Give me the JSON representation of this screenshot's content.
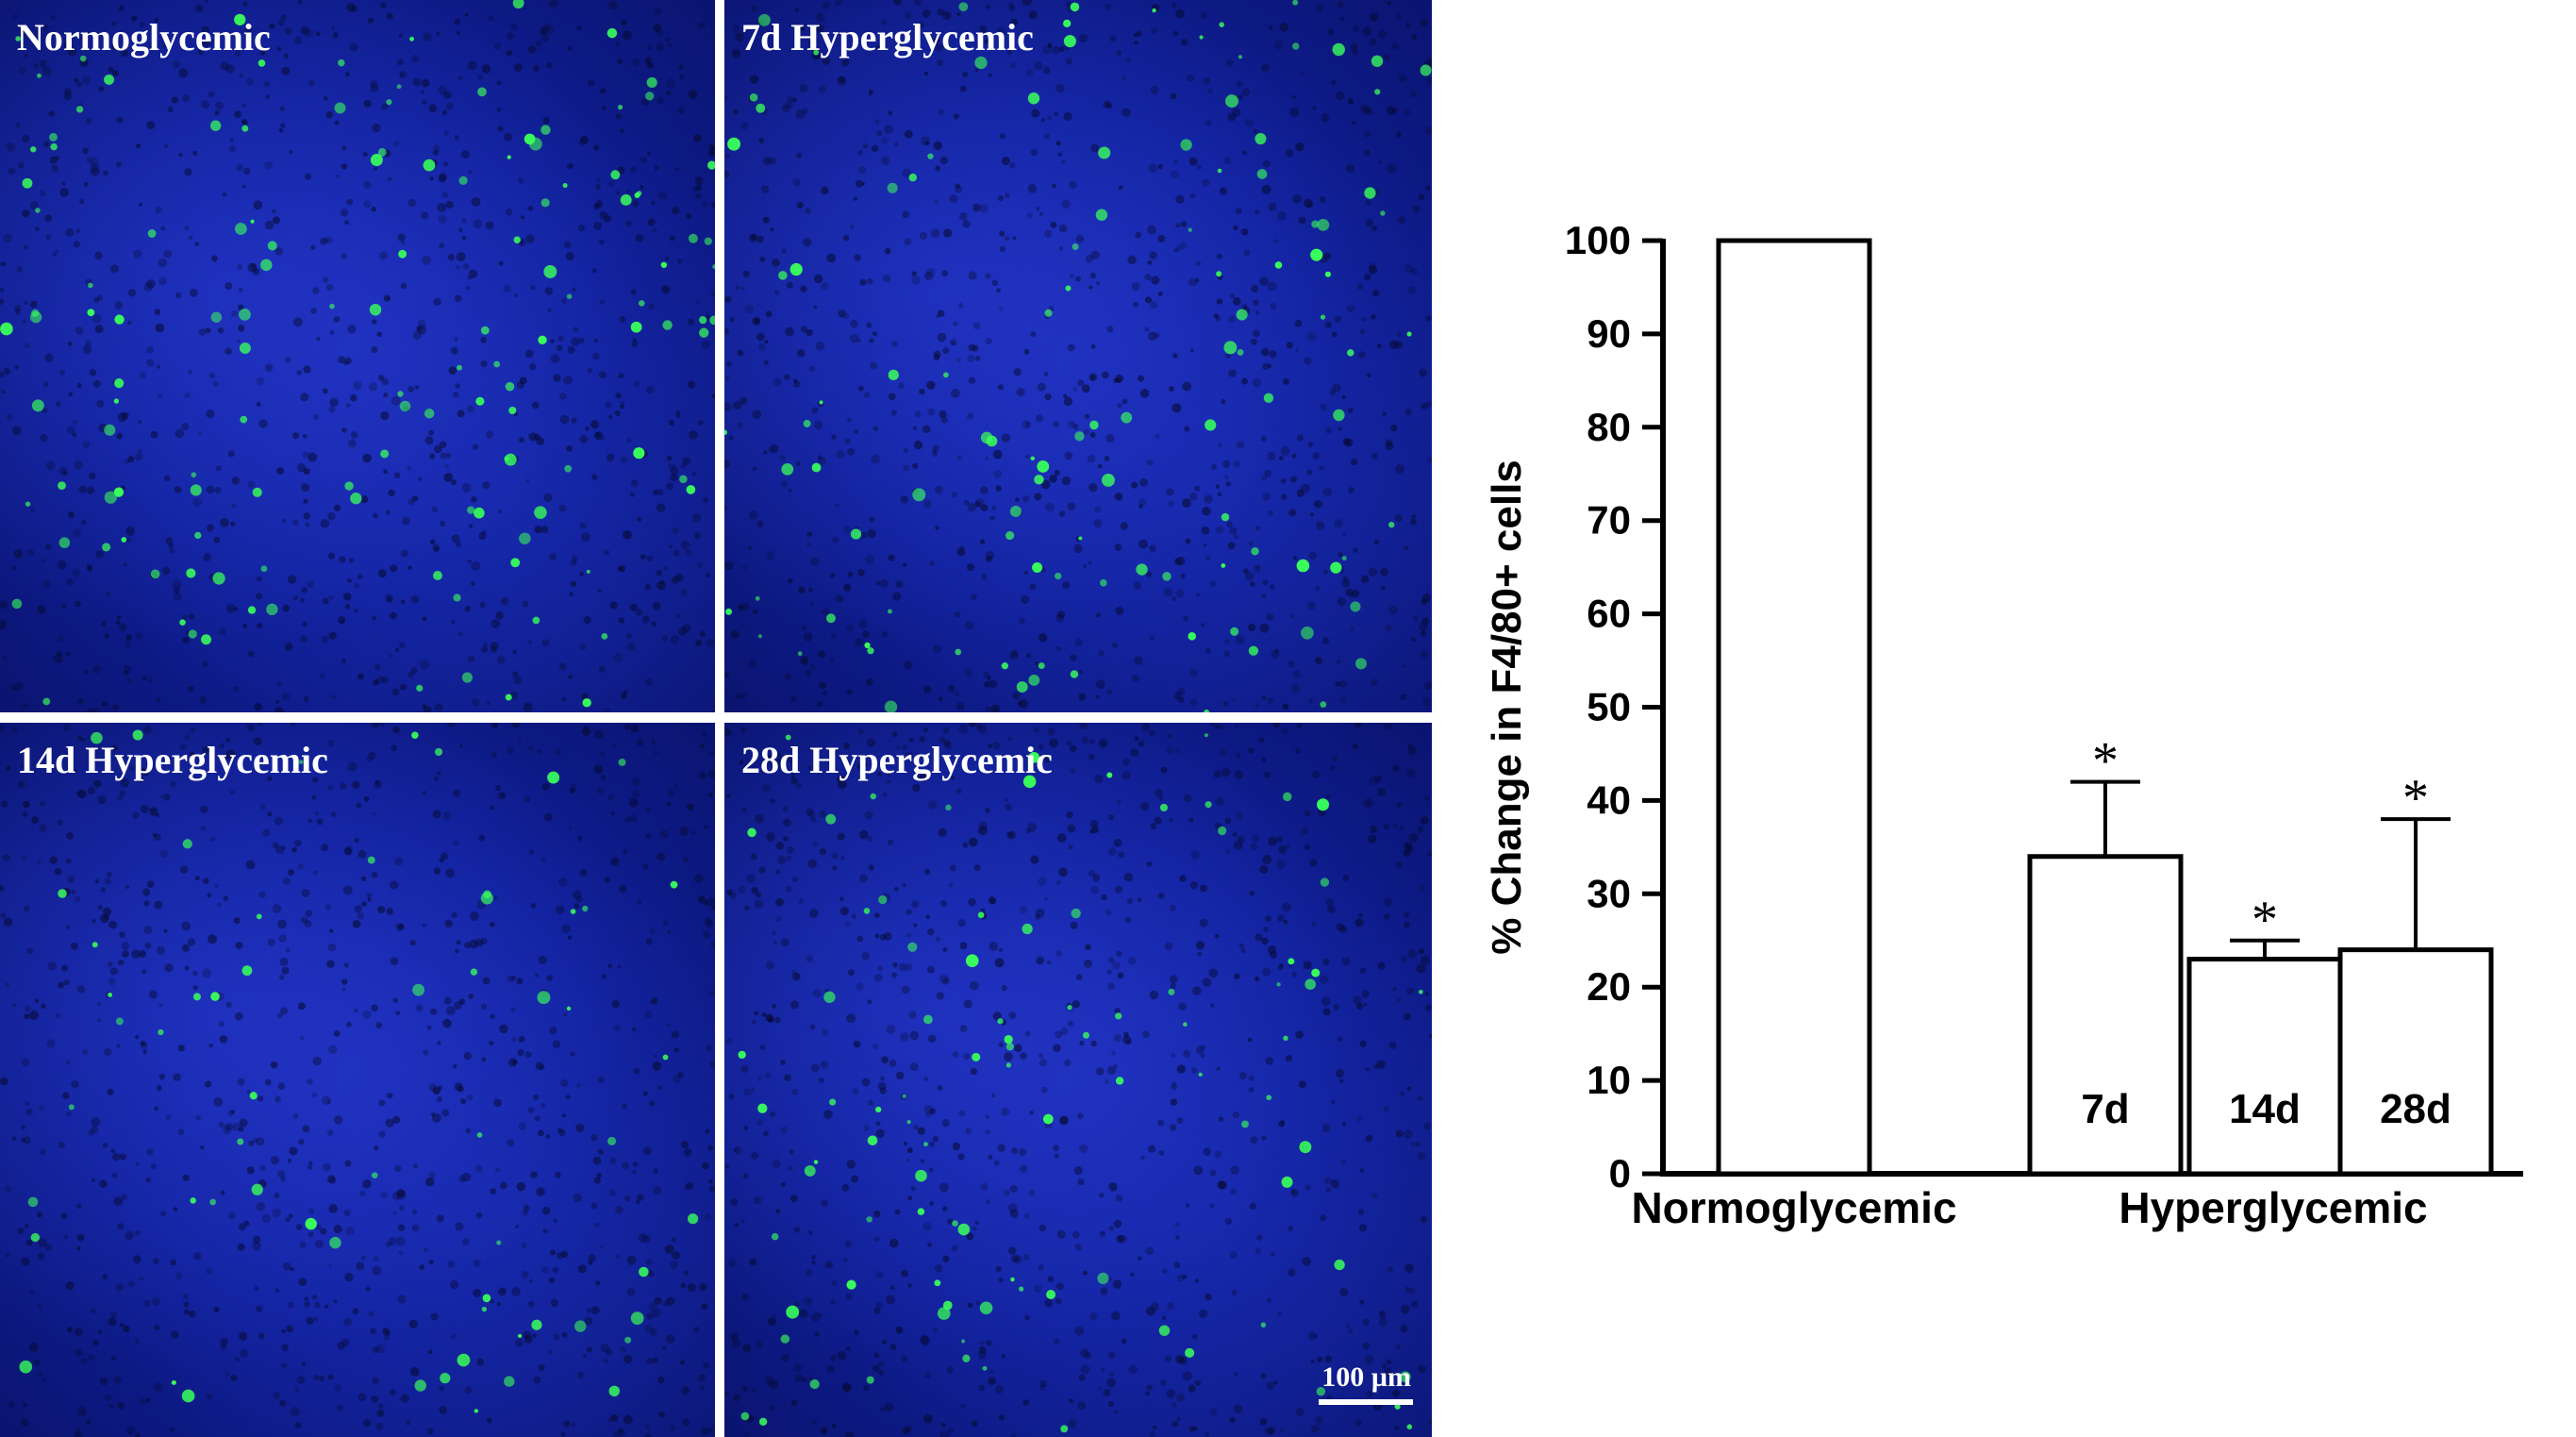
{
  "panels": [
    {
      "label": "Normoglycemic"
    },
    {
      "label": "7d Hyperglycemic"
    },
    {
      "label": "14d Hyperglycemic"
    },
    {
      "label": "28d Hyperglycemic"
    }
  ],
  "scale_bar": {
    "label": "100 µm"
  },
  "colors": {
    "nuclei": "#1a2bb8",
    "f480": "#39ff5a",
    "bar_fill": "#ffffff",
    "stroke": "#000000"
  },
  "chart_data": {
    "type": "bar",
    "ylabel": "% Change in F4/80+ cells",
    "ylim": [
      0,
      100
    ],
    "yticks": [
      0,
      10,
      20,
      30,
      40,
      50,
      60,
      70,
      80,
      90,
      100
    ],
    "groups": [
      {
        "label": "Normoglycemic",
        "bars": [
          {
            "label": "",
            "value": 100,
            "error": 0,
            "significant": false
          }
        ]
      },
      {
        "label": "Hyperglycemic",
        "bars": [
          {
            "label": "7d",
            "value": 34,
            "error": 8,
            "significant": true
          },
          {
            "label": "14d",
            "value": 23,
            "error": 2,
            "significant": true
          },
          {
            "label": "28d",
            "value": 24,
            "error": 14,
            "significant": true
          }
        ]
      }
    ],
    "significance_marker": "*"
  }
}
